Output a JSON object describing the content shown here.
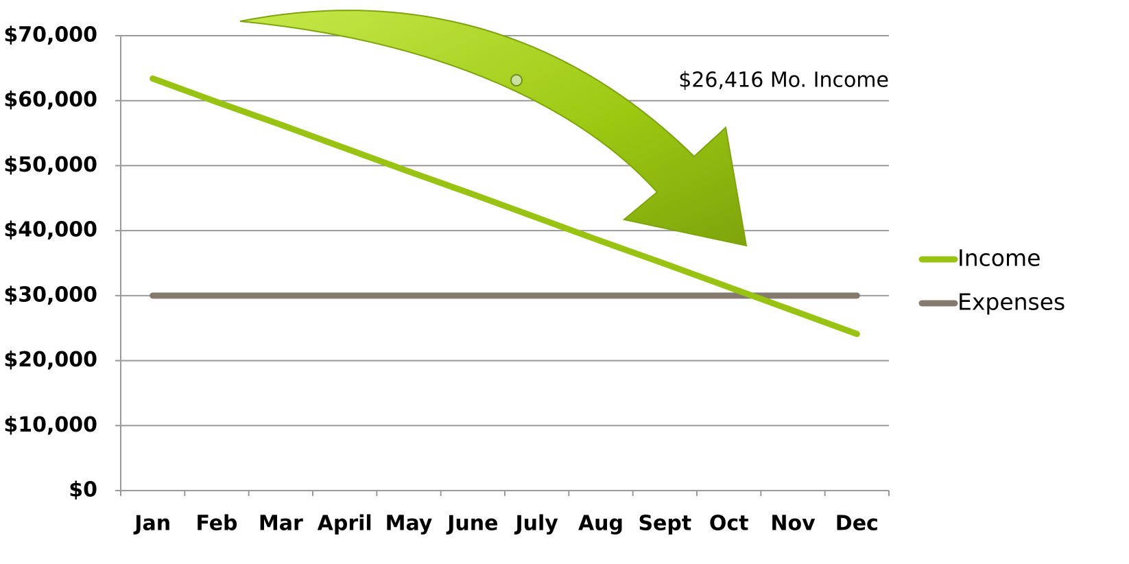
{
  "chart_data": {
    "type": "line",
    "categories": [
      "Jan",
      "Feb",
      "Mar",
      "April",
      "May",
      "June",
      "July",
      "Aug",
      "Sept",
      "Oct",
      "Nov",
      "Dec"
    ],
    "series": [
      {
        "name": "Income",
        "color": "#99c313",
        "values": [
          63400,
          59800,
          56300,
          52700,
          49100,
          45600,
          42000,
          38400,
          34900,
          31300,
          27700,
          24100
        ]
      },
      {
        "name": "Expenses",
        "color": "#857a6e",
        "values": [
          30000,
          30000,
          30000,
          30000,
          30000,
          30000,
          30000,
          30000,
          30000,
          30000,
          30000,
          30000
        ]
      }
    ],
    "ylim": [
      0,
      70000
    ],
    "yticks": [
      {
        "value": 0,
        "label": "$0"
      },
      {
        "value": 10000,
        "label": "$10,000"
      },
      {
        "value": 20000,
        "label": "$20,000"
      },
      {
        "value": 30000,
        "label": "$30,000"
      },
      {
        "value": 40000,
        "label": "$40,000"
      },
      {
        "value": 50000,
        "label": "$50,000"
      },
      {
        "value": 60000,
        "label": "$60,000"
      },
      {
        "value": 70000,
        "label": "$70,000"
      }
    ],
    "grid": true,
    "legend": "right",
    "annotations": [
      "$26,416 Mo. Income"
    ]
  }
}
